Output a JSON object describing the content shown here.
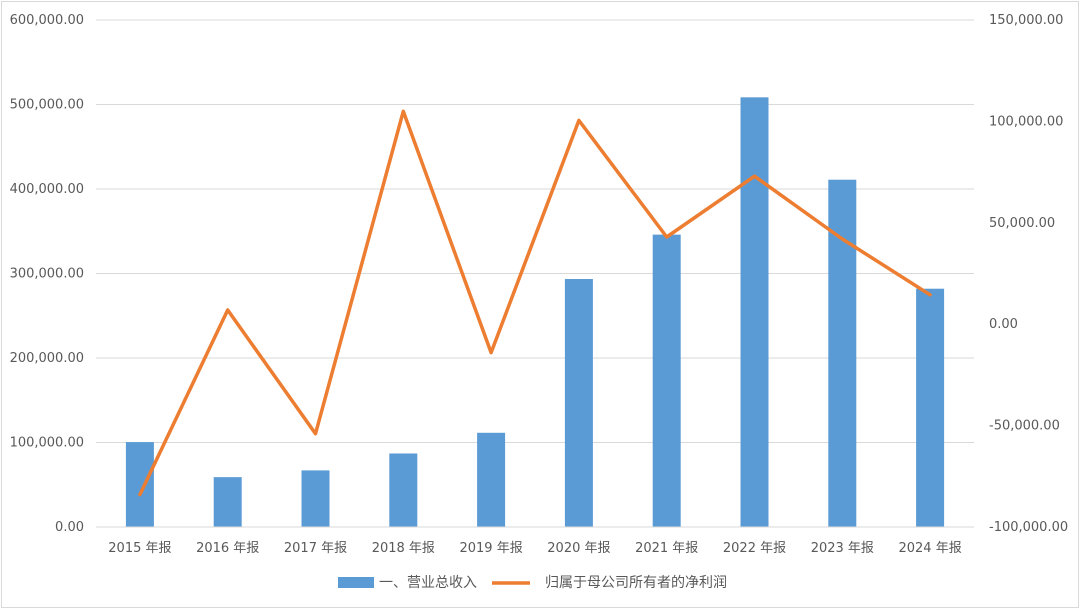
{
  "chart_data": {
    "type": "bar",
    "categories": [
      "2015 年报",
      "2016 年报",
      "2017 年报",
      "2018 年报",
      "2019 年报",
      "2020 年报",
      "2021 年报",
      "2022 年报",
      "2023 年报",
      "2024 年报"
    ],
    "series": [
      {
        "name": "一、营业总收入",
        "type": "bar",
        "axis": "left",
        "color": "#5b9bd5",
        "values": [
          100500,
          59000,
          67000,
          87000,
          111500,
          293500,
          346000,
          508500,
          411000,
          282000
        ]
      },
      {
        "name": "归属于母公司所有者的净利润",
        "type": "line",
        "axis": "right",
        "color": "#ed7d31",
        "values": [
          -84000,
          7000,
          -54000,
          105000,
          -14000,
          100500,
          43000,
          73000,
          42000,
          14500
        ]
      }
    ],
    "y_left": {
      "ylim": [
        0,
        600000
      ],
      "ticks": [
        {
          "value": 0,
          "label": "0.00"
        },
        {
          "value": 100000,
          "label": "100,000.00"
        },
        {
          "value": 200000,
          "label": "200,000.00"
        },
        {
          "value": 300000,
          "label": "300,000.00"
        },
        {
          "value": 400000,
          "label": "400,000.00"
        },
        {
          "value": 500000,
          "label": "500,000.00"
        },
        {
          "value": 600000,
          "label": "600,000.00"
        }
      ]
    },
    "y_right": {
      "ylim": [
        -100000,
        150000
      ],
      "ticks": [
        {
          "value": -100000,
          "label": "-100,000.00"
        },
        {
          "value": -50000,
          "label": "-50,000.00"
        },
        {
          "value": 0,
          "label": "0.00"
        },
        {
          "value": 50000,
          "label": "50,000.00"
        },
        {
          "value": 100000,
          "label": "100,000.00"
        },
        {
          "value": 150000,
          "label": "150,000.00"
        }
      ]
    },
    "grid": true,
    "legend_position": "bottom",
    "title": "",
    "xlabel": "",
    "ylabel": ""
  }
}
